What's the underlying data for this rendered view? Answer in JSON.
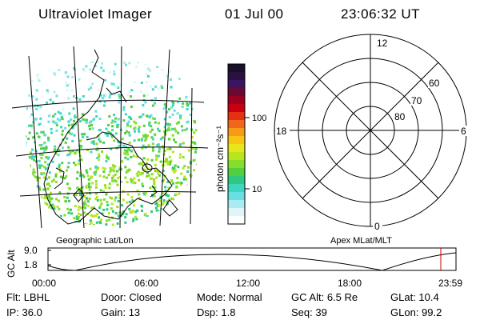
{
  "header": {
    "instrument": "Ultraviolet Imager",
    "date": "01 Jul 00",
    "time": "23:06:32 UT"
  },
  "map": {
    "label": "Geographic Lat/Lon"
  },
  "colorbar": {
    "unit_label": "photon cm⁻²s⁻¹",
    "ticks": [
      "100",
      "10"
    ],
    "colors": [
      "#1a0f2b",
      "#2a1240",
      "#3a1560",
      "#6a0a30",
      "#9a0020",
      "#c80010",
      "#e63012",
      "#f2661a",
      "#f79a18",
      "#f6c516",
      "#e8e61a",
      "#b8e61e",
      "#86de28",
      "#52cf40",
      "#30c880",
      "#3fd6c0",
      "#66e0e0",
      "#a8ecef",
      "#dff6f8",
      "#ffffff"
    ]
  },
  "polar": {
    "label": "Apex MLat/MLT",
    "hour_labels": {
      "top": "12",
      "right": "6",
      "bottom": "0",
      "left": "18"
    },
    "lat_labels": [
      "80",
      "70",
      "60"
    ]
  },
  "altitude_plot": {
    "ylabel": "GC Alt",
    "yticks": [
      "9.0",
      "1.8"
    ],
    "xticks": [
      "00:00",
      "06:00",
      "12:00",
      "18:00",
      "23:59"
    ],
    "cursor_color": "#cc0000"
  },
  "status": {
    "row1": [
      {
        "label": "Flt:",
        "value": "LBHL"
      },
      {
        "label": "Door:",
        "value": "Closed"
      },
      {
        "label": "Mode:",
        "value": "Normal"
      },
      {
        "label": "GC Alt:",
        "value": "6.5 Re"
      },
      {
        "label": "GLat:",
        "value": "10.4"
      }
    ],
    "row2": [
      {
        "label": "IP:",
        "value": "36.0"
      },
      {
        "label": "Gain:",
        "value": "13"
      },
      {
        "label": "Dsp:",
        "value": "1.8"
      },
      {
        "label": "Seq:",
        "value": "39"
      },
      {
        "label": "GLon:",
        "value": "99.2"
      }
    ]
  }
}
